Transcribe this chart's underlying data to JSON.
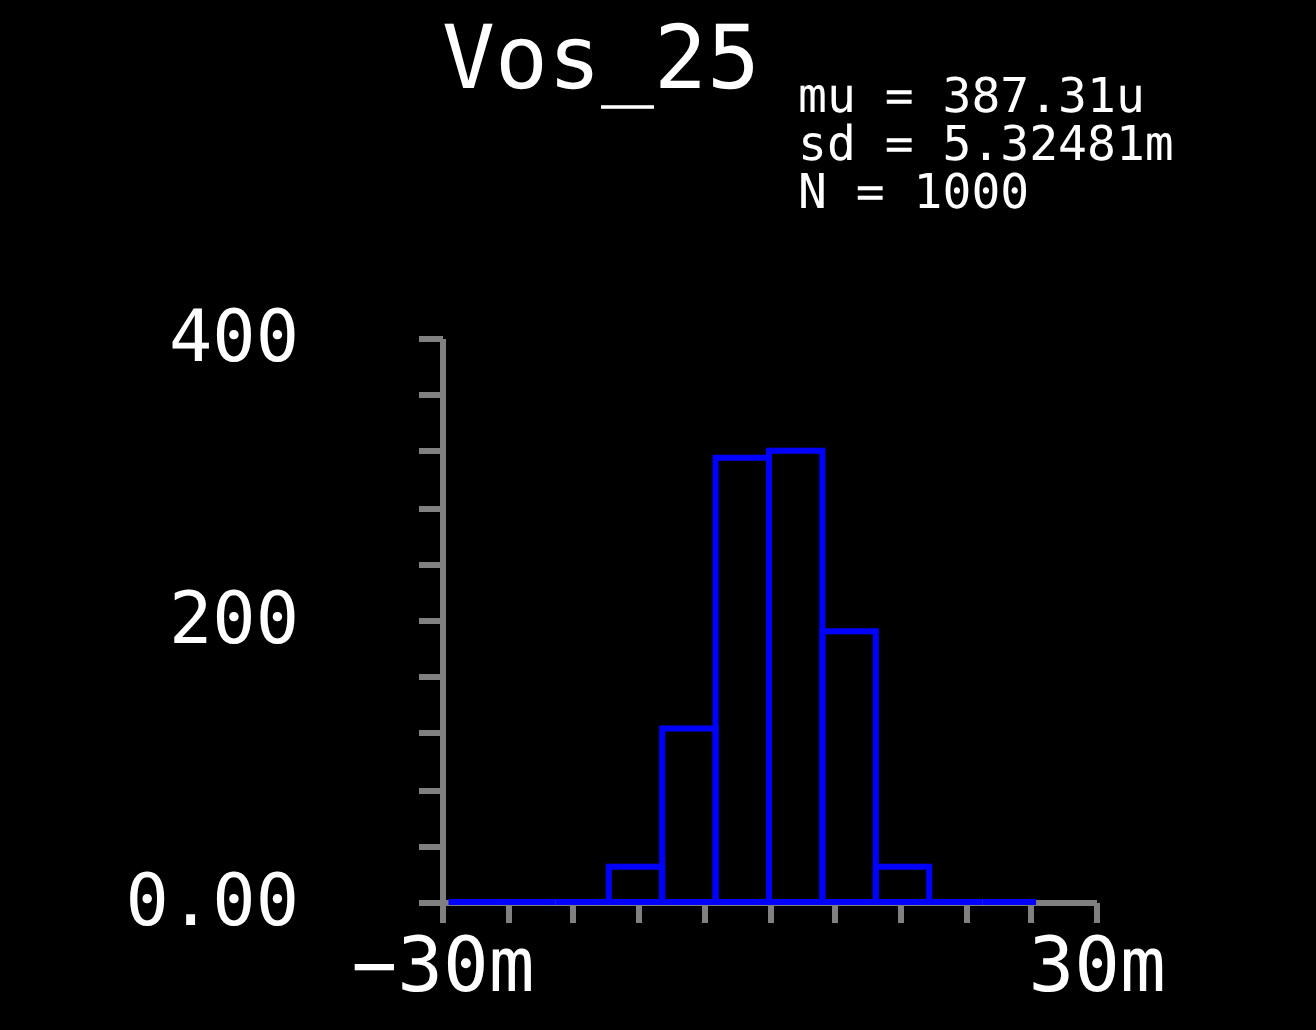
{
  "chart_data": {
    "type": "histogram",
    "title": "Vos_25",
    "annotations": [
      "mu = 387.31u",
      "sd = 5.32481m",
      "N = 1000"
    ],
    "bins": [
      -29.4,
      -24.5,
      -19.6,
      -14.7,
      -9.8,
      -4.9,
      0,
      4.9,
      9.8,
      14.7,
      19.6,
      24.5
    ],
    "values": [
      0,
      0,
      0,
      25,
      123,
      315,
      320,
      192,
      25,
      0,
      0
    ],
    "color": "#0000ff",
    "xlim": [
      -30,
      30
    ],
    "xticks": [
      {
        "value": -30,
        "label": "−30m"
      },
      {
        "value": -24,
        "label": null
      },
      {
        "value": -18,
        "label": null
      },
      {
        "value": -12,
        "label": null
      },
      {
        "value": -6,
        "label": null
      },
      {
        "value": 0,
        "label": null
      },
      {
        "value": 6,
        "label": null
      },
      {
        "value": 12,
        "label": null
      },
      {
        "value": 18,
        "label": null
      },
      {
        "value": 24,
        "label": null
      },
      {
        "value": 30,
        "label": "30m"
      }
    ],
    "ylim": [
      0,
      400
    ],
    "yticks": [
      {
        "value": 0,
        "label": "0.00"
      },
      {
        "value": 40,
        "label": null
      },
      {
        "value": 80,
        "label": null
      },
      {
        "value": 120,
        "label": null
      },
      {
        "value": 160,
        "label": null
      },
      {
        "value": 200,
        "label": "200"
      },
      {
        "value": 240,
        "label": null
      },
      {
        "value": 280,
        "label": null
      },
      {
        "value": 320,
        "label": null
      },
      {
        "value": 360,
        "label": null
      },
      {
        "value": 400,
        "label": "400"
      }
    ],
    "grid": false
  }
}
